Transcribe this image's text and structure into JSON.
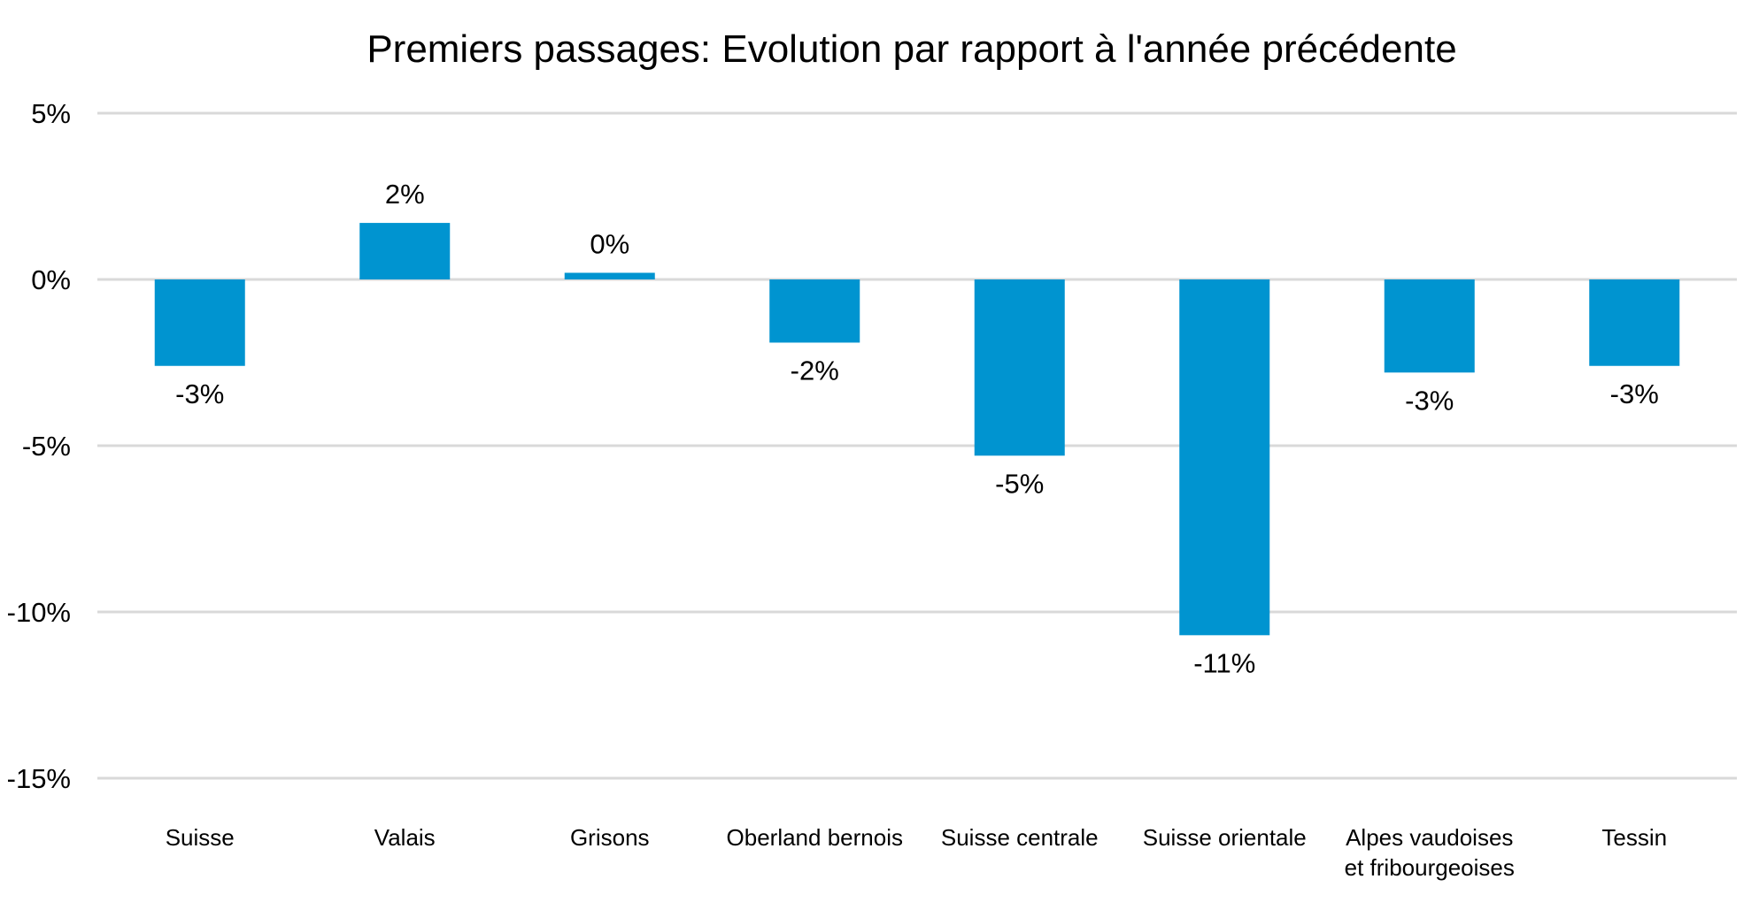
{
  "chart_data": {
    "type": "bar",
    "title": "Premiers passages: Evolution par rapport à l'année précédente",
    "xlabel": "",
    "ylabel": "",
    "ylim": [
      -15,
      5
    ],
    "yticks": [
      5,
      0,
      -5,
      -10,
      -15
    ],
    "ytick_labels": [
      "5%",
      "0%",
      "-5%",
      "-10%",
      "-15%"
    ],
    "grid": true,
    "legend": "none",
    "bar_color": "#0094d0",
    "categories": [
      [
        "Suisse"
      ],
      [
        "Valais"
      ],
      [
        "Grisons"
      ],
      [
        "Oberland bernois"
      ],
      [
        "Suisse centrale"
      ],
      [
        "Suisse orientale"
      ],
      [
        "Alpes vaudoises",
        "et fribourgeoises"
      ],
      [
        "Tessin"
      ]
    ],
    "values": [
      -2.6,
      1.7,
      0.2,
      -1.9,
      -5.3,
      -10.7,
      -2.8,
      -2.6
    ],
    "data_labels": [
      "-3%",
      "2%",
      "0%",
      "-2%",
      "-5%",
      "-11%",
      "-3%",
      "-3%"
    ]
  }
}
